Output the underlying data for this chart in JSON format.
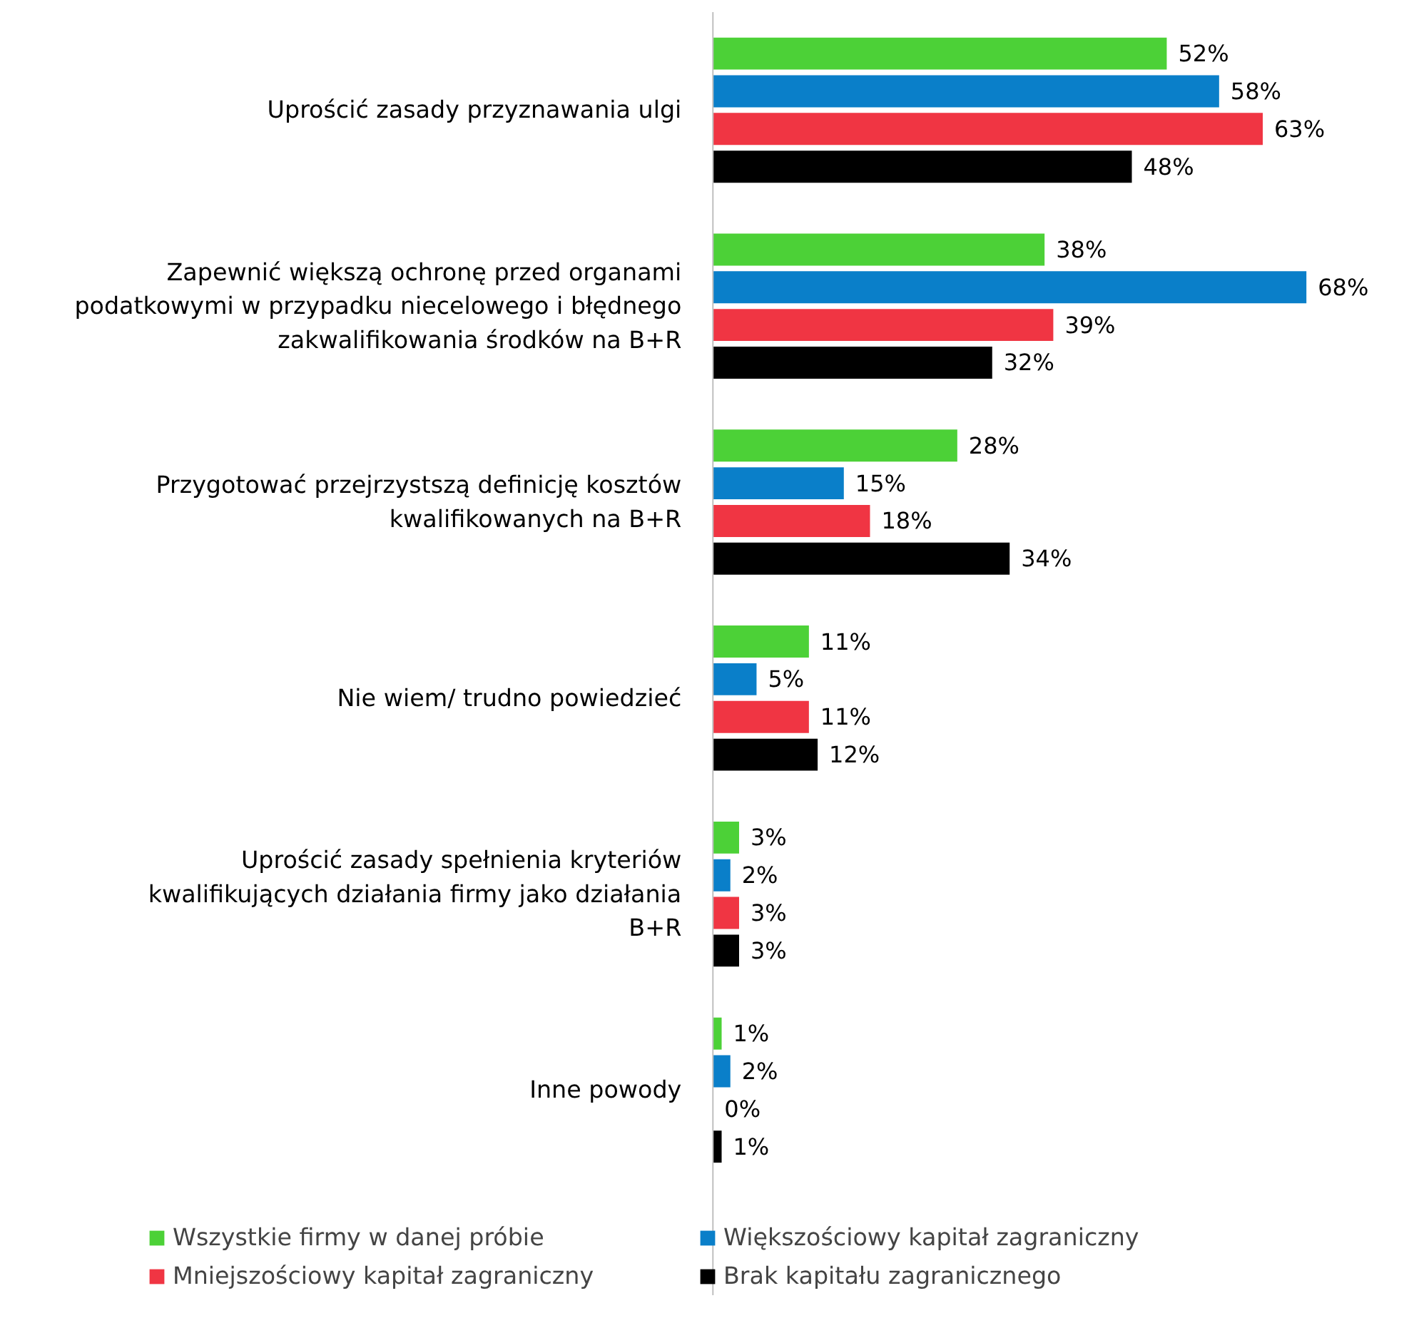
{
  "chart_data": {
    "type": "bar",
    "orientation": "horizontal",
    "legend": "bottom",
    "grid": false,
    "categories": [
      "Uprościć zasady przyznawania ulgi",
      "Zapewnić większą ochronę przed organami podatkowymi w przypadku niecelowego i błędnego zakwalifikowania środków na B+R",
      "Przygotować przejrzystszą definicję kosztów kwalifikowanych na B+R",
      "Nie wiem/ trudno powiedzieć",
      "Uprościć zasady spełnienia kryteriów kwalifikujących działania firmy jako działania B+R",
      "Inne powody"
    ],
    "series": [
      {
        "name": "Wszystkie firmy w danej próbie",
        "color": "#4cd137",
        "values": [
          52,
          38,
          28,
          11,
          3,
          1
        ],
        "value_labels": [
          "52%",
          "38%",
          "28%",
          "11%",
          "3%",
          "1%"
        ]
      },
      {
        "name": "Większościowy kapitał zagraniczny",
        "color": "#0a7fc9",
        "values": [
          58,
          68,
          15,
          5,
          2,
          2
        ],
        "value_labels": [
          "58%",
          "68%",
          "15%",
          "5%",
          "2%",
          "2%"
        ]
      },
      {
        "name": "Mniejszościowy kapitał zagraniczny",
        "color": "#f03543",
        "values": [
          63,
          39,
          18,
          11,
          3,
          0
        ],
        "value_labels": [
          "63%",
          "39%",
          "18%",
          "11%",
          "3%",
          "0%"
        ]
      },
      {
        "name": "Brak kapitału zagranicznego",
        "color": "#000000",
        "values": [
          48,
          32,
          34,
          12,
          3,
          1
        ],
        "value_labels": [
          "48%",
          "32%",
          "34%",
          "12%",
          "3%",
          "1%"
        ]
      }
    ]
  }
}
